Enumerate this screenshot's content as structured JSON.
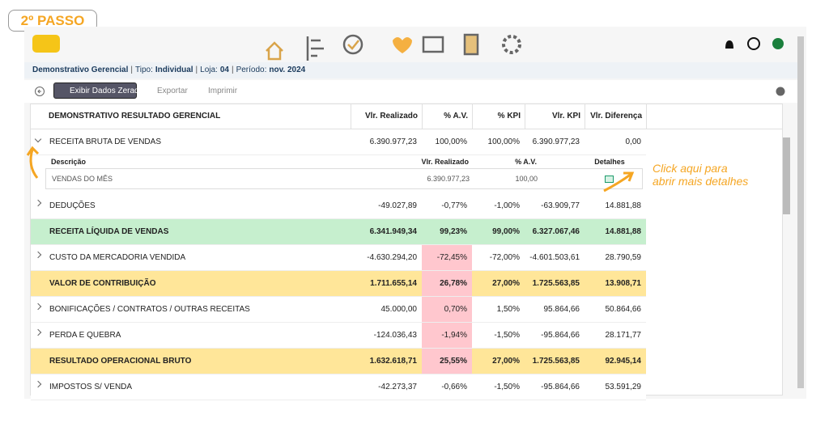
{
  "badge": "2º PASSO",
  "breadcrumb": {
    "title": "Demonstrativo Gerencial",
    "separator": "|",
    "fields": [
      {
        "label": "Tipo:",
        "value": "Individual"
      },
      {
        "label": "Loja:",
        "value": "04"
      },
      {
        "label": "Período:",
        "value": "nov. 2024"
      }
    ]
  },
  "toolbar": [
    "Exibir Dados Zerado",
    "Exportar",
    "Imprimir"
  ],
  "table": {
    "columns": [
      "DEMONSTRATIVO RESULTADO GERENCIAL",
      "Vlr. Realizado",
      "% A.V.",
      "% KPI",
      "Vlr. KPI",
      "Vlr. Diferença"
    ],
    "rows": [
      {
        "cells": [
          "RECEITA BRUTA DE VENDAS",
          "6.390.977,23",
          "100,00%",
          "100,00%",
          "6.390.977,23",
          "0,00"
        ],
        "expanded": true,
        "detail": {
          "columns": [
            "Descrição",
            "Vlr. Realizado",
            "% A.V.",
            "Detalhes"
          ],
          "rows": [
            [
              "VENDAS DO MÊS",
              "6.390.977,23",
              "100,00"
            ]
          ]
        }
      },
      {
        "cells": [
          "DEDUÇÕES",
          "-49.027,89",
          "-0,77%",
          "-1,00%",
          "-63.909,77",
          "14.881,88"
        ]
      },
      {
        "cells": [
          "RECEITA LÍQUIDA DE VENDAS",
          "6.341.949,34",
          "99,23%",
          "99,00%",
          "6.327.067,46",
          "14.881,88"
        ],
        "color": "#c6efce"
      },
      {
        "cells": [
          "CUSTO DA MERCADORIA VENDIDA",
          "-4.630.294,20",
          "-72,45%",
          "-72,00%",
          "-4.601.503,61",
          "28.790,59"
        ],
        "av_color": "#ffc7ce"
      },
      {
        "cells": [
          "VALOR DE CONTRIBUIÇÃO",
          "1.711.655,14",
          "26,78%",
          "27,00%",
          "1.725.563,85",
          "13.908,71"
        ],
        "color": "#ffe699",
        "av_color": "#ffc7ce"
      },
      {
        "cells": [
          "BONIFICAÇÕES / CONTRATOS / OUTRAS RECEITAS",
          "45.000,00",
          "0,70%",
          "1,50%",
          "95.864,66",
          "50.864,66"
        ],
        "av_color": "#ffc7ce"
      },
      {
        "cells": [
          "PERDA E QUEBRA",
          "-124.036,43",
          "-1,94%",
          "-1,50%",
          "-95.864,66",
          "28.171,77"
        ],
        "av_color": "#ffc7ce"
      },
      {
        "cells": [
          "RESULTADO OPERACIONAL BRUTO",
          "1.632.618,71",
          "25,55%",
          "27,00%",
          "1.725.563,85",
          "92.945,14"
        ],
        "color": "#ffe699",
        "av_color": "#ffc7ce"
      },
      {
        "cells": [
          "IMPOSTOS S/ VENDA",
          "-42.273,37",
          "-0,66%",
          "-1,50%",
          "-95.864,66",
          "53.591,29"
        ]
      }
    ]
  },
  "annotation": [
    "Click aqui para",
    "abrir mais detalhes"
  ]
}
